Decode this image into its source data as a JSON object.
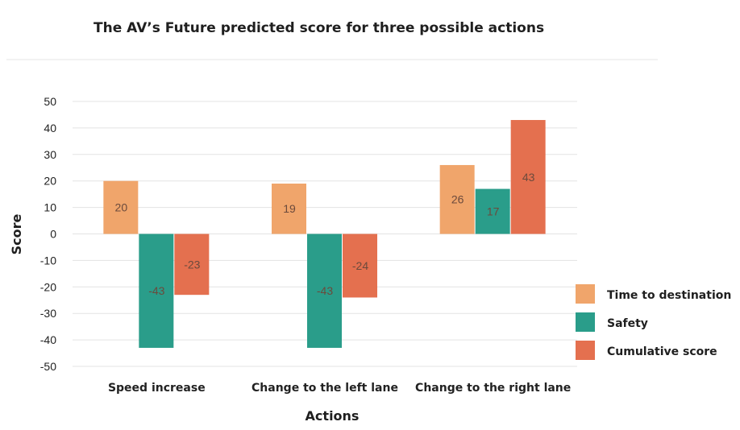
{
  "chart_data": {
    "type": "bar",
    "title": "The AV’s Future predicted score for three possible actions",
    "xlabel": "Actions",
    "ylabel": "Score",
    "ylim": [
      -50,
      50
    ],
    "yticks": [
      50,
      40,
      30,
      20,
      10,
      0,
      -10,
      -20,
      -30,
      -40,
      -50
    ],
    "categories": [
      "Speed increase",
      "Change to the left lane",
      "Change to the right lane"
    ],
    "series": [
      {
        "name": "Time to destination",
        "color": "#f0a56b",
        "values": [
          20,
          19,
          26
        ]
      },
      {
        "name": "Safety",
        "color": "#2a9d8a",
        "values": [
          -43,
          -43,
          17
        ]
      },
      {
        "name": "Cumulative score",
        "color": "#e4704f",
        "values": [
          -23,
          -24,
          43
        ]
      }
    ],
    "grid": true,
    "legend_position": "right"
  }
}
